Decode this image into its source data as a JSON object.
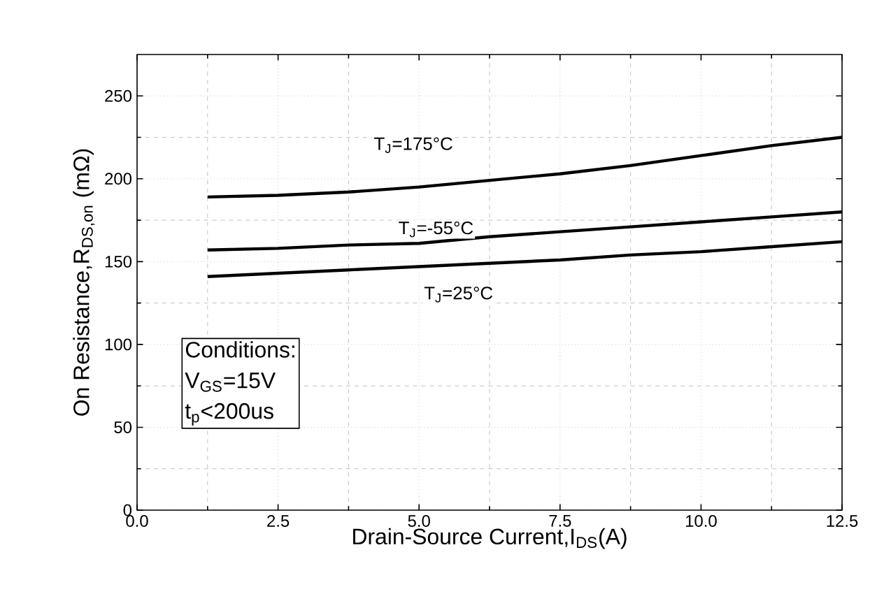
{
  "chart_data": {
    "type": "line",
    "xlabel": "Drain-Source Current,I$_{DS}$(A)",
    "ylabel": "On Resistance,R$_{DS,on}$ (mΩ)",
    "x": [
      1.25,
      2.5,
      3.75,
      5,
      6.25,
      7.5,
      8.75,
      10,
      11.25,
      12.5
    ],
    "series": [
      {
        "name": "T$_{J}$=175°C",
        "color": "#000000",
        "values": [
          189,
          190,
          192,
          195,
          199,
          203,
          208,
          214,
          220,
          225
        ]
      },
      {
        "name": "T$_{J}$=-55°C",
        "color": "#000000",
        "values": [
          157,
          158,
          160,
          161,
          165,
          168,
          171,
          174,
          177,
          180
        ]
      },
      {
        "name": "T$_{J}$=25°C",
        "color": "#000000",
        "values": [
          141,
          143,
          145,
          147,
          149,
          151,
          154,
          156,
          159,
          162
        ]
      }
    ],
    "xlim": [
      0,
      12.5
    ],
    "ylim": [
      0,
      275
    ],
    "xticks": [
      {
        "value": 0,
        "label": "0.0"
      },
      2.5,
      {
        "value": 5,
        "label": "5.0"
      },
      7.5,
      {
        "value": 10,
        "label": "10.0"
      },
      12.5
    ],
    "yticks": [
      0,
      50,
      100,
      150,
      200,
      250
    ],
    "grid": true,
    "marker": "none",
    "line_style": "solid",
    "annotations": [
      "Conditions:",
      "V$_{GS}$=15V",
      "t$_{p}$<200us"
    ]
  }
}
